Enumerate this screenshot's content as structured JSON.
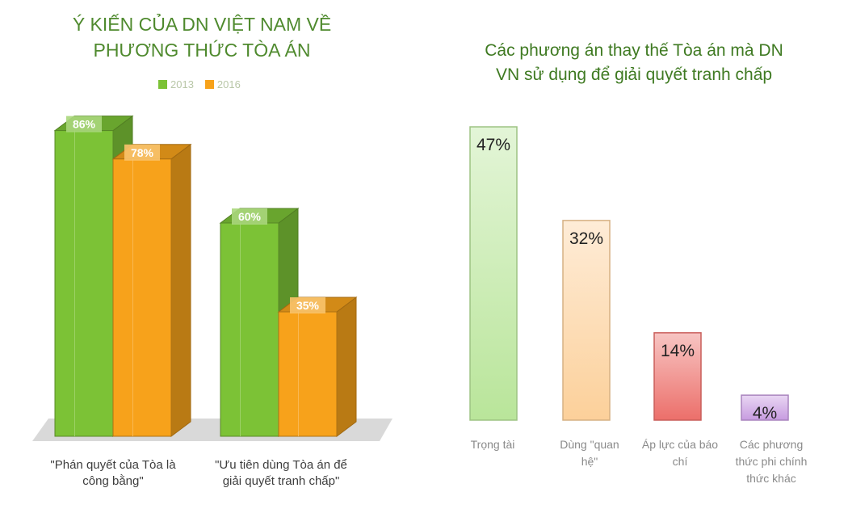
{
  "left": {
    "title_line1": "Ý KIẾN CỦA DN VIỆT NAM VỀ",
    "title_line2": "PHƯƠNG THỨC TÒA ÁN",
    "legend": [
      {
        "label": "2013",
        "color": "#7cc236"
      },
      {
        "label": "2016",
        "color": "#f7a21b"
      }
    ]
  },
  "right": {
    "title_line1": "Các phương án thay thế Tòa án mà DN",
    "title_line2": "VN sử dụng để giải quyết tranh chấp"
  },
  "chart_data": [
    {
      "type": "bar",
      "title": "Ý KIẾN CỦA DN VIỆT NAM VỀ PHƯƠNG THỨC TÒA ÁN",
      "categories": [
        "\"Phán quyết của Tòa là công bằng\"",
        "\"Ưu tiên dùng Tòa án để giải quyết tranh chấp\""
      ],
      "category_lines": [
        [
          "\"Phán quyết của Tòa là",
          "công bằng\""
        ],
        [
          "\"Ưu tiên dùng Tòa án để",
          "giải quyết tranh chấp\""
        ]
      ],
      "series": [
        {
          "name": "2013",
          "values": [
            86,
            60
          ],
          "labels": [
            "86%",
            "60%"
          ],
          "color": "#7cc236"
        },
        {
          "name": "2016",
          "values": [
            78,
            35
          ],
          "labels": [
            "78%",
            "35%"
          ],
          "color": "#f7a21b"
        }
      ],
      "ylim": [
        0,
        100
      ],
      "legend": "top",
      "grid": false
    },
    {
      "type": "bar",
      "title": "Các phương án thay thế Tòa án mà DN VN sử dụng để giải quyết tranh chấp",
      "categories": [
        "Trọng tài",
        "Dùng \"quan hệ\"",
        "Áp lực của báo chí",
        "Các phương thức phi chính thức khác"
      ],
      "category_lines": [
        [
          "Trọng tài"
        ],
        [
          "Dùng \"quan",
          "hệ\""
        ],
        [
          "Áp lực của báo",
          "chí"
        ],
        [
          "Các phương",
          "thức phi chính",
          "thức khác"
        ]
      ],
      "values": [
        47,
        32,
        14,
        4
      ],
      "labels": [
        "47%",
        "32%",
        "14%",
        "4%"
      ],
      "colors": [
        "#b9e59a",
        "#fcd09a",
        "#ec6f6a",
        "#c79be0"
      ],
      "ylim": [
        0,
        50
      ],
      "grid": false
    }
  ]
}
